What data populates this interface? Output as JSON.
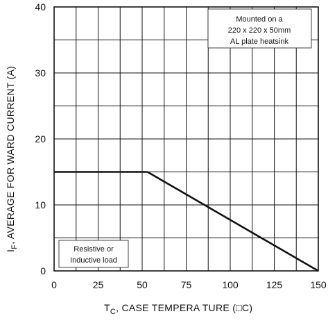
{
  "chart_data": {
    "type": "line",
    "xlabel": "T",
    "xlabel_subscript": "C",
    "xlabel_suffix": ", CASE   TEMPERA TURE  (□C)",
    "ylabel": "I",
    "ylabel_subscript": "F",
    "ylabel_suffix": ",  AVERAGE   FOR WARD  CURRENT   (A)",
    "xlim": [
      0,
      150
    ],
    "ylim": [
      0,
      40
    ],
    "x_ticks": [
      "0",
      "25",
      "50",
      "75",
      "100",
      "125",
      "150"
    ],
    "y_ticks": [
      "0",
      "10",
      "20",
      "30",
      "40"
    ],
    "grid": true,
    "series": [
      {
        "x": [
          0,
          53,
          150
        ],
        "y": [
          15,
          15,
          0
        ]
      }
    ],
    "annotations": {
      "top_right": [
        "Mounted on a",
        "220 x 220 x 50mm",
        "AL plate heatsink"
      ],
      "bottom_left": [
        "Resistive  or",
        "Inductive load"
      ]
    }
  }
}
